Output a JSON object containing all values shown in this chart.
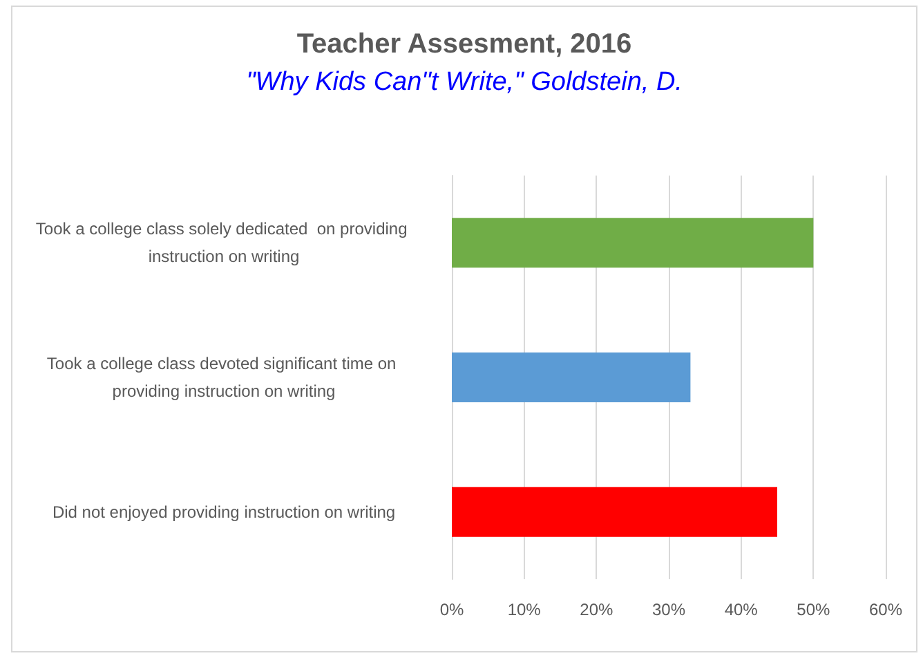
{
  "chart_data": {
    "type": "bar",
    "orientation": "horizontal",
    "title": "Teacher Assesment, 2016",
    "subtitle": "\"Why Kids Can\"t Write,\" Goldstein, D.",
    "categories": [
      "Took a college class solely dedicated  on providing instruction on writing",
      "Took a college class devoted significant time on providing instruction on writing",
      "Did not enjoyed providing instruction on writing"
    ],
    "values": [
      50,
      33,
      45
    ],
    "colors": [
      "#70ad47",
      "#5b9bd5",
      "#ff0000"
    ],
    "xlim": [
      0,
      60
    ],
    "xticks": [
      {
        "value": 0,
        "label": "0%"
      },
      {
        "value": 10,
        "label": "10%"
      },
      {
        "value": 20,
        "label": "20%"
      },
      {
        "value": 30,
        "label": "30%"
      },
      {
        "value": 40,
        "label": "40%"
      },
      {
        "value": 50,
        "label": "50%"
      },
      {
        "value": 60,
        "label": "60%"
      }
    ],
    "grid": "x"
  }
}
